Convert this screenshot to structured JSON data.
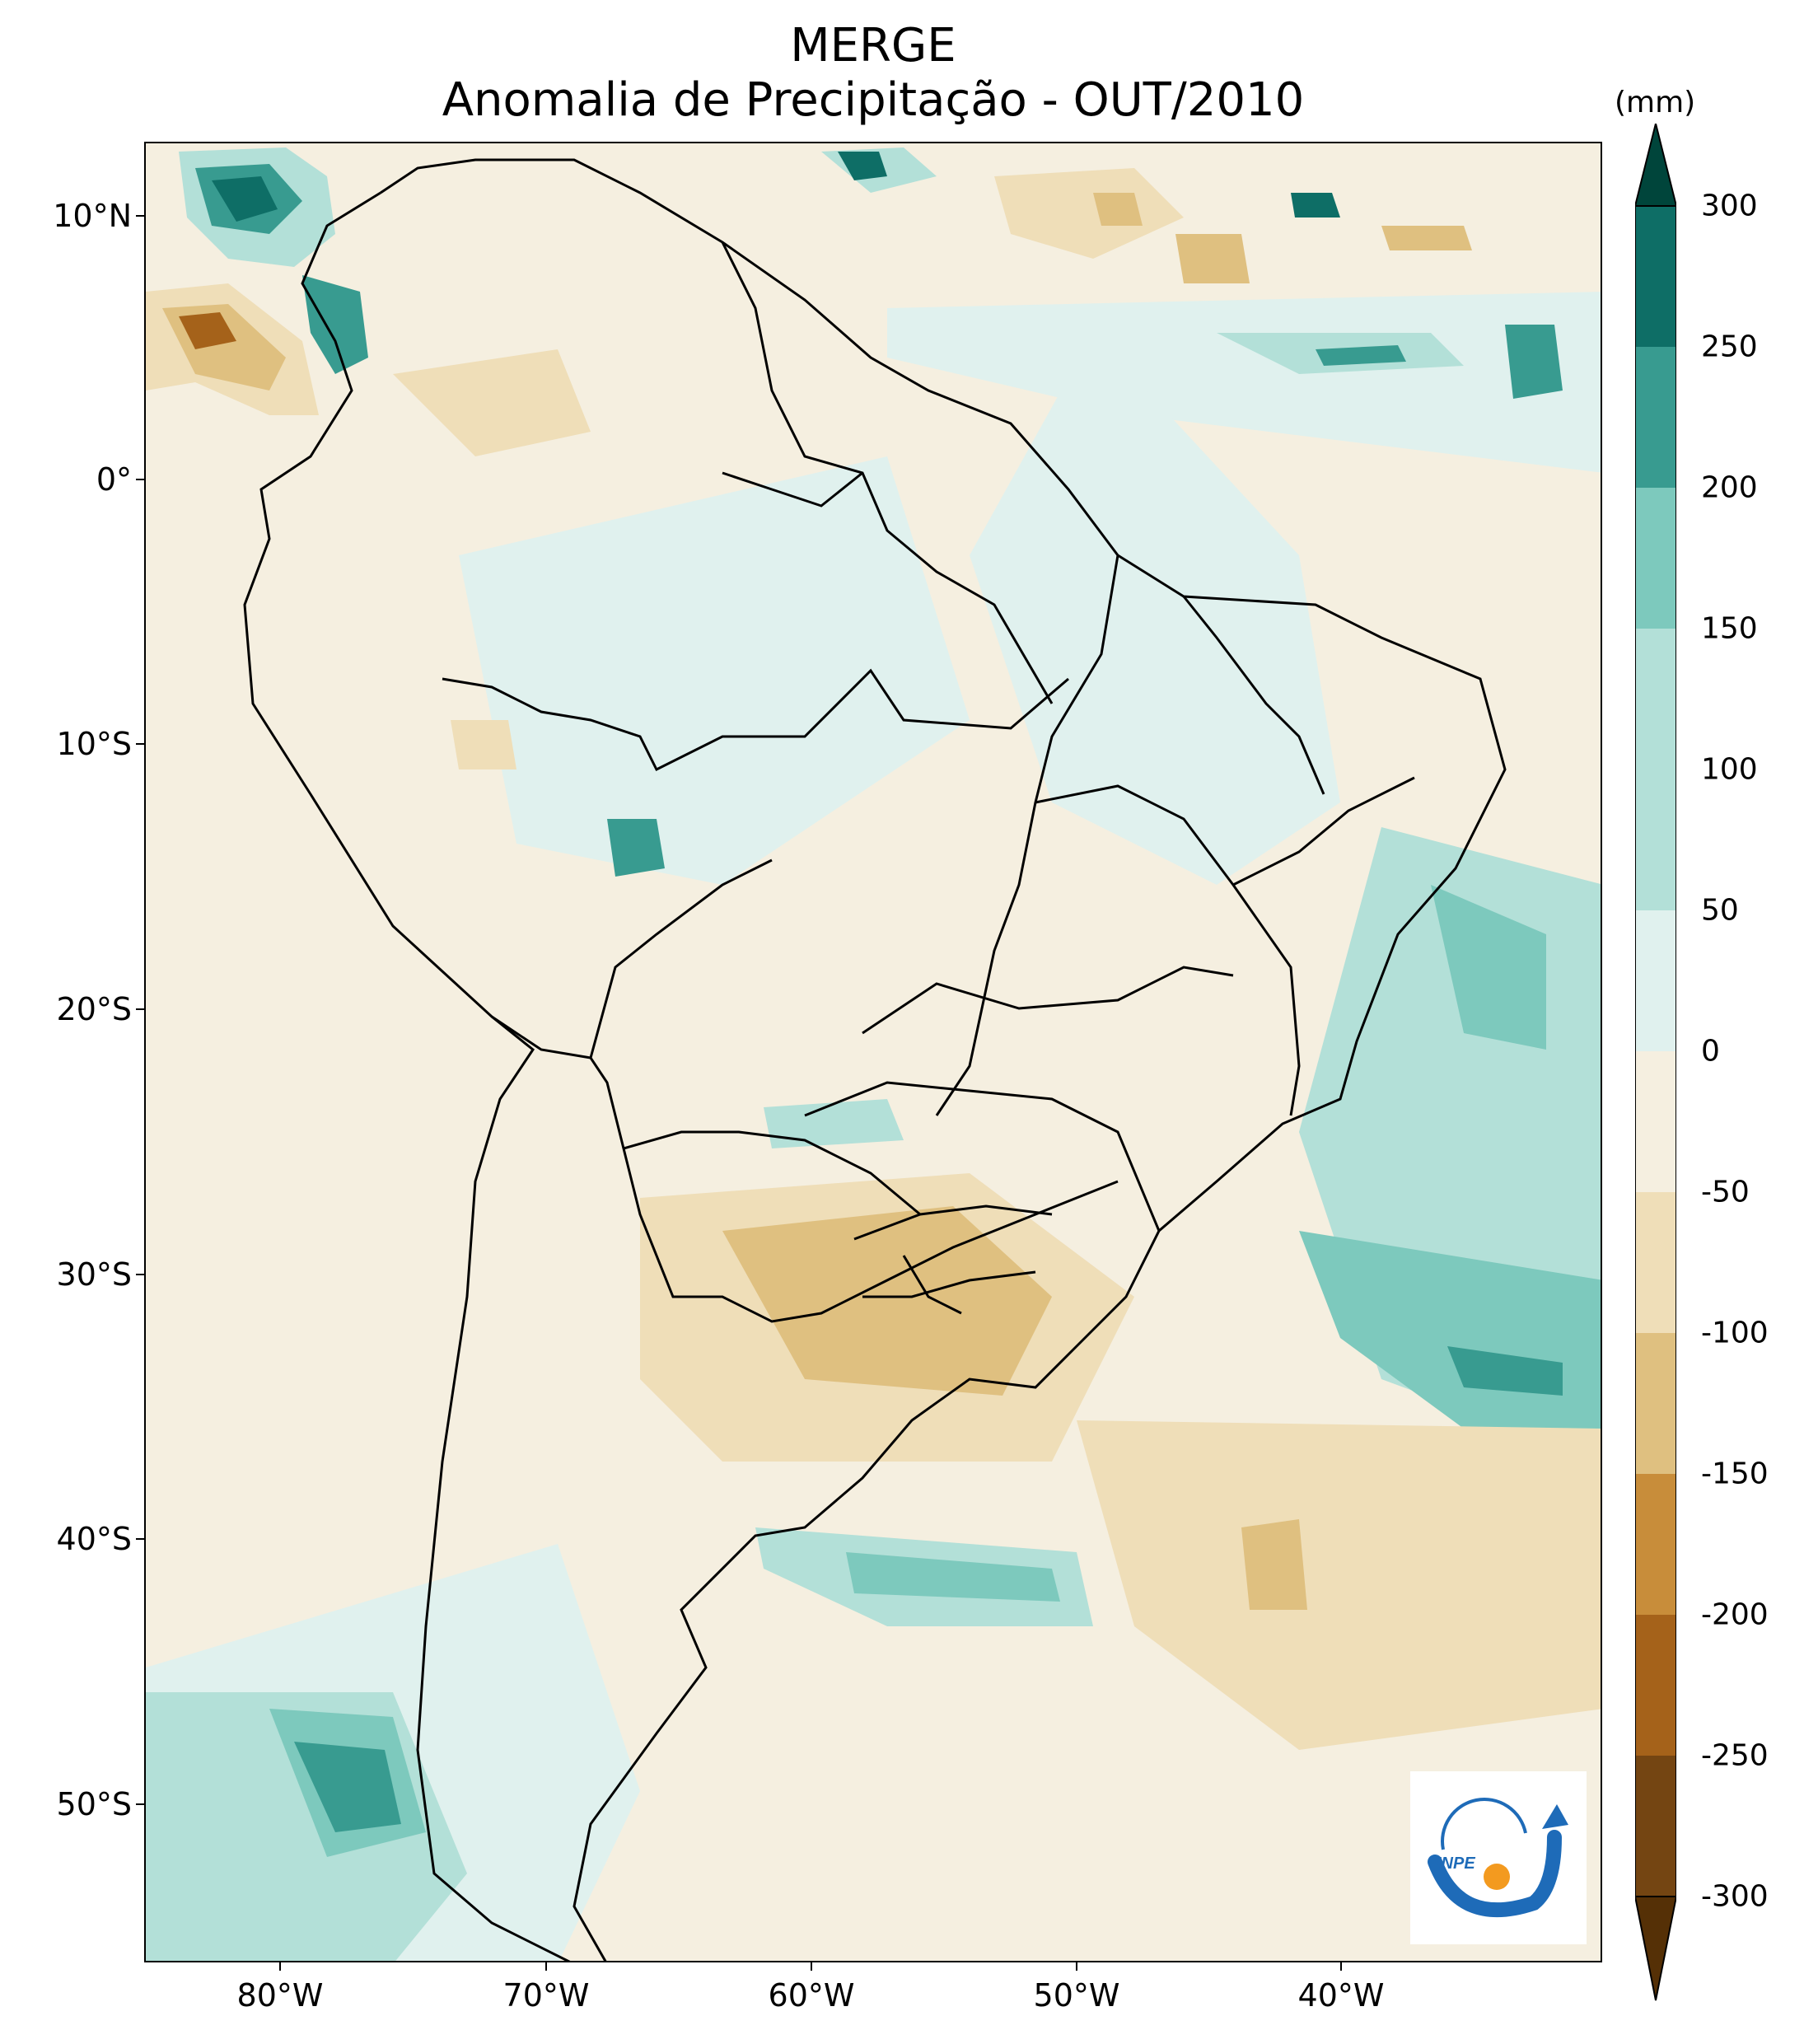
{
  "title": {
    "line1": "MERGE",
    "line2": "Anomalia de Precipitação - OUT/2010"
  },
  "map": {
    "region": "South America",
    "lat_labels": [
      "10°N",
      "0°",
      "10°S",
      "20°S",
      "30°S",
      "40°S",
      "50°S"
    ],
    "lon_labels": [
      "80°W",
      "70°W",
      "60°W",
      "50°W",
      "40°W"
    ]
  },
  "colorbar": {
    "units": "(mm)",
    "ticks": [
      "300",
      "250",
      "200",
      "150",
      "100",
      "50",
      "0",
      "-50",
      "-100",
      "-150",
      "-200",
      "-250",
      "-300"
    ],
    "colors": {
      "c300": "#00453b",
      "c250": "#0e6e66",
      "c200": "#389b90",
      "c150": "#7dc9bd",
      "c100": "#b3e0d8",
      "c50": "#e0f1ee",
      "c0": "#f5efe0",
      "cm50": "#efdeb8",
      "cm100": "#dfc080",
      "cm150": "#c88d3a",
      "cm200": "#a5621a",
      "cm250": "#744512",
      "cm300": "#553006"
    }
  },
  "logo": {
    "text": "INPE",
    "color_arc": "#1e6bb8",
    "color_dot": "#f39a1f"
  }
}
